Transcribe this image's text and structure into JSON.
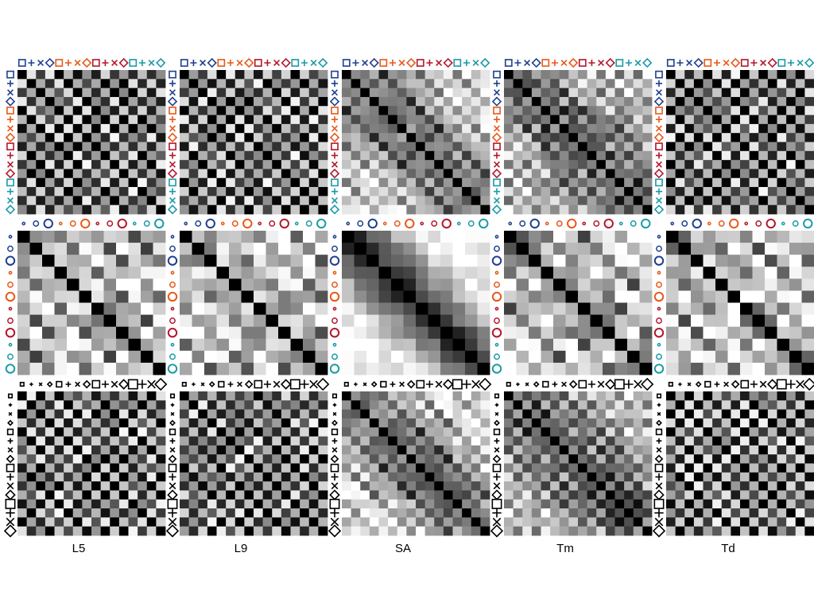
{
  "chart_data": {
    "type": "heatmap",
    "title": "",
    "colormap": "grayscale",
    "columns": [
      "L5",
      "L9",
      "SA",
      "Tm",
      "Td"
    ],
    "rows": [
      {
        "name": "color-shape",
        "n": 16,
        "markers": [
          {
            "shape": "square",
            "color": "#1f3f8f"
          },
          {
            "shape": "plus",
            "color": "#1f3f8f"
          },
          {
            "shape": "x",
            "color": "#1f3f8f"
          },
          {
            "shape": "diamond",
            "color": "#1f3f8f"
          },
          {
            "shape": "square",
            "color": "#e8581a"
          },
          {
            "shape": "plus",
            "color": "#e8581a"
          },
          {
            "shape": "x",
            "color": "#e8581a"
          },
          {
            "shape": "diamond",
            "color": "#e8581a"
          },
          {
            "shape": "square",
            "color": "#b3172c"
          },
          {
            "shape": "plus",
            "color": "#b3172c"
          },
          {
            "shape": "x",
            "color": "#b3172c"
          },
          {
            "shape": "diamond",
            "color": "#b3172c"
          },
          {
            "shape": "square",
            "color": "#1a9aa8"
          },
          {
            "shape": "plus",
            "color": "#1a9aa8"
          },
          {
            "shape": "x",
            "color": "#1a9aa8"
          },
          {
            "shape": "diamond",
            "color": "#1a9aa8"
          }
        ]
      },
      {
        "name": "color-size",
        "n": 12,
        "markers": [
          {
            "shape": "circle",
            "size": 1,
            "color": "#1f3f8f"
          },
          {
            "shape": "circle",
            "size": 2,
            "color": "#1f3f8f"
          },
          {
            "shape": "circle",
            "size": 3,
            "color": "#1f3f8f"
          },
          {
            "shape": "circle",
            "size": 1,
            "color": "#e8581a"
          },
          {
            "shape": "circle",
            "size": 2,
            "color": "#e8581a"
          },
          {
            "shape": "circle",
            "size": 3,
            "color": "#e8581a"
          },
          {
            "shape": "circle",
            "size": 1,
            "color": "#b3172c"
          },
          {
            "shape": "circle",
            "size": 2,
            "color": "#b3172c"
          },
          {
            "shape": "circle",
            "size": 3,
            "color": "#b3172c"
          },
          {
            "shape": "circle",
            "size": 1,
            "color": "#1a9aa8"
          },
          {
            "shape": "circle",
            "size": 2,
            "color": "#1a9aa8"
          },
          {
            "shape": "circle",
            "size": 3,
            "color": "#1a9aa8"
          }
        ]
      },
      {
        "name": "shape-size",
        "n": 16,
        "markers": [
          {
            "shape": "square",
            "size": 1,
            "color": "#000000"
          },
          {
            "shape": "plus",
            "size": 1,
            "color": "#000000"
          },
          {
            "shape": "x",
            "size": 1,
            "color": "#000000"
          },
          {
            "shape": "diamond",
            "size": 1,
            "color": "#000000"
          },
          {
            "shape": "square",
            "size": 2,
            "color": "#000000"
          },
          {
            "shape": "plus",
            "size": 2,
            "color": "#000000"
          },
          {
            "shape": "x",
            "size": 2,
            "color": "#000000"
          },
          {
            "shape": "diamond",
            "size": 2,
            "color": "#000000"
          },
          {
            "shape": "square",
            "size": 3,
            "color": "#000000"
          },
          {
            "shape": "plus",
            "size": 3,
            "color": "#000000"
          },
          {
            "shape": "x",
            "size": 3,
            "color": "#000000"
          },
          {
            "shape": "diamond",
            "size": 3,
            "color": "#000000"
          },
          {
            "shape": "square",
            "size": 4,
            "color": "#000000"
          },
          {
            "shape": "plus",
            "size": 4,
            "color": "#000000"
          },
          {
            "shape": "x",
            "size": 4,
            "color": "#000000"
          },
          {
            "shape": "diamond",
            "size": 4,
            "color": "#000000"
          }
        ]
      }
    ]
  }
}
